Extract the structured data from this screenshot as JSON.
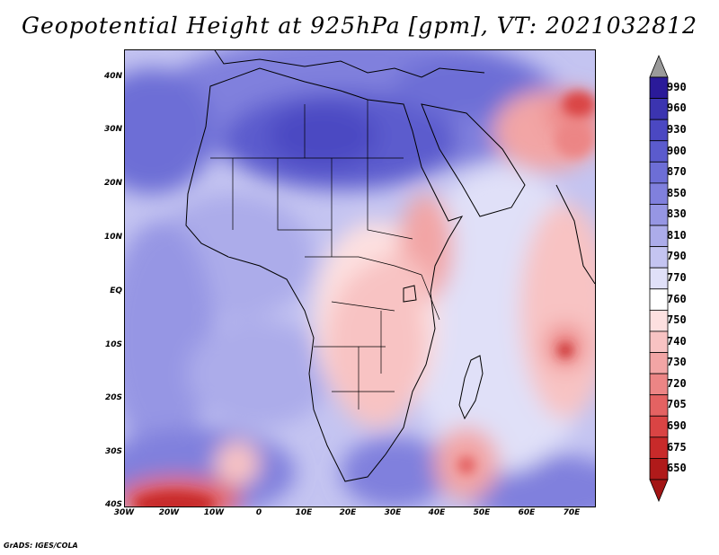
{
  "title": "Geopotential Height at 925hPa [gpm], VT: 2021032812",
  "credit": "GrADS: IGES/COLA",
  "map": {
    "region": "Africa",
    "lon_range": [
      -30,
      75
    ],
    "lat_range": [
      -40,
      45
    ],
    "lat_labels": [
      "40N",
      "30N",
      "20N",
      "10N",
      "EQ",
      "10S",
      "20S",
      "30S",
      "40S"
    ],
    "lon_labels": [
      "30W",
      "20W",
      "10W",
      "0",
      "10E",
      "20E",
      "30E",
      "40E",
      "50E",
      "60E",
      "70E"
    ]
  },
  "legend": {
    "levels": [
      "990",
      "960",
      "930",
      "900",
      "870",
      "850",
      "830",
      "810",
      "790",
      "770",
      "760",
      "750",
      "740",
      "730",
      "720",
      "705",
      "690",
      "675",
      "650"
    ],
    "colors": [
      "#2a1a99",
      "#3b34b0",
      "#4b48c2",
      "#5b5bcd",
      "#6d6ed6",
      "#8080dd",
      "#9696e4",
      "#acacea",
      "#c4c4f1",
      "#e0e0f8",
      "#ffffff",
      "#fde0e0",
      "#f8c3c3",
      "#f2a5a5",
      "#ec8585",
      "#e46262",
      "#da4444",
      "#c82a2a",
      "#b01a1a"
    ],
    "over_color": "#9a9a9a",
    "under_color": "#a31515"
  }
}
